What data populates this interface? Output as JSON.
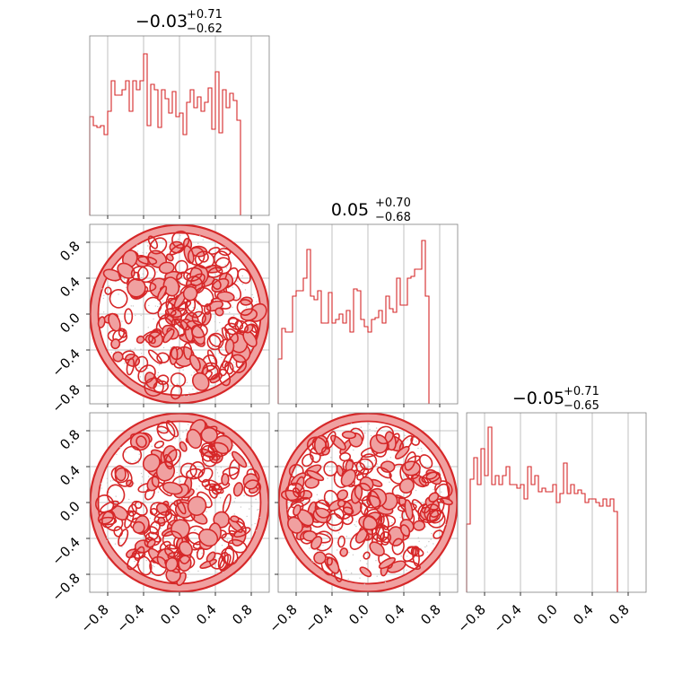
{
  "chart_data": [
    {
      "type": "histogram",
      "panel": "diag-0",
      "title": {
        "median": "−0.03",
        "plus": "+0.71",
        "minus": "−0.62"
      },
      "xlim": [
        -1.0,
        1.0
      ],
      "bin_edges_start": -1.0,
      "bin_width": 0.04,
      "counts": [
        0.55,
        0.5,
        0.49,
        0.5,
        0.45,
        0.58,
        0.75,
        0.67,
        0.67,
        0.7,
        0.75,
        0.58,
        0.75,
        0.7,
        0.75,
        0.9,
        0.5,
        0.73,
        0.7,
        0.49,
        0.7,
        0.65,
        0.57,
        0.69,
        0.55,
        0.57,
        0.45,
        0.63,
        0.7,
        0.6,
        0.66,
        0.58,
        0.63,
        0.71,
        0.48,
        0.8,
        0.46,
        0.7,
        0.6,
        0.68,
        0.64,
        0.53
      ],
      "color": "#d62728",
      "grid": true
    },
    {
      "type": "contour",
      "panel": "row1-col0",
      "xlim": [
        -1.0,
        1.0
      ],
      "ylim": [
        -1.0,
        1.0
      ],
      "yticks": [
        "−0.8",
        "−0.4",
        "0.0",
        "0.4",
        "0.8"
      ],
      "support": "unit disk",
      "color": "#d62728",
      "fill": "#f0a0a0",
      "grid": true
    },
    {
      "type": "histogram",
      "panel": "diag-1",
      "title": {
        "median": "0.05",
        "plus": "+0.70",
        "minus": "−0.68"
      },
      "xlim": [
        -1.0,
        1.0
      ],
      "bin_edges_start": -1.0,
      "bin_width": 0.04,
      "counts": [
        0.25,
        0.42,
        0.4,
        0.4,
        0.6,
        0.63,
        0.63,
        0.7,
        0.86,
        0.6,
        0.58,
        0.63,
        0.45,
        0.45,
        0.62,
        0.45,
        0.47,
        0.5,
        0.45,
        0.52,
        0.4,
        0.64,
        0.63,
        0.47,
        0.43,
        0.4,
        0.47,
        0.48,
        0.52,
        0.45,
        0.6,
        0.53,
        0.51,
        0.7,
        0.55,
        0.55,
        0.7,
        0.71,
        0.75,
        0.75,
        0.91,
        0.6
      ],
      "color": "#d62728",
      "grid": true
    },
    {
      "type": "contour",
      "panel": "row2-col0",
      "xlim": [
        -1.0,
        1.0
      ],
      "ylim": [
        -1.0,
        1.0
      ],
      "xticks": [
        "−0.8",
        "−0.4",
        "0.0",
        "0.4",
        "0.8"
      ],
      "yticks": [
        "−0.8",
        "−0.4",
        "0.0",
        "0.4",
        "0.8"
      ],
      "support": "unit disk",
      "color": "#d62728",
      "fill": "#f0a0a0",
      "grid": true
    },
    {
      "type": "contour",
      "panel": "row2-col1",
      "xlim": [
        -1.0,
        1.0
      ],
      "ylim": [
        -1.0,
        1.0
      ],
      "xticks": [
        "−0.8",
        "−0.4",
        "0.0",
        "0.4",
        "0.8"
      ],
      "support": "unit disk",
      "color": "#d62728",
      "fill": "#f0a0a0",
      "grid": true
    },
    {
      "type": "histogram",
      "panel": "diag-2",
      "title": {
        "median": "−0.05",
        "plus": "+0.71",
        "minus": "−0.65"
      },
      "xlim": [
        -1.0,
        1.0
      ],
      "xticks": [
        "−0.8",
        "−0.4",
        "0.0",
        "0.4",
        "0.8"
      ],
      "bin_edges_start": -1.0,
      "bin_width": 0.04,
      "counts": [
        0.38,
        0.63,
        0.75,
        0.6,
        0.8,
        0.65,
        0.92,
        0.6,
        0.65,
        0.6,
        0.65,
        0.7,
        0.6,
        0.6,
        0.58,
        0.6,
        0.52,
        0.7,
        0.6,
        0.65,
        0.56,
        0.58,
        0.56,
        0.56,
        0.6,
        0.5,
        0.55,
        0.72,
        0.55,
        0.6,
        0.55,
        0.57,
        0.55,
        0.5,
        0.52,
        0.52,
        0.5,
        0.48,
        0.52,
        0.48,
        0.52,
        0.45
      ],
      "color": "#d62728",
      "grid": true
    }
  ]
}
